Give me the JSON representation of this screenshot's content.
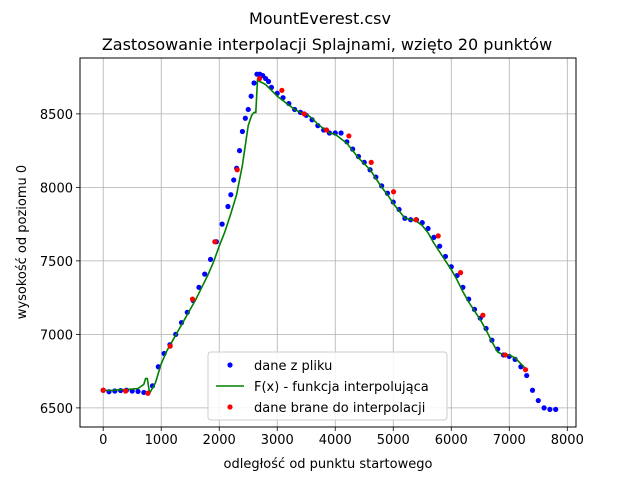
{
  "chart_data": {
    "type": "line",
    "title": "MountEverest.csv",
    "subtitle": "Zastosowanie interpolacji Splajnami, wzięto 20 punktów",
    "xlabel": "odległość od punktu startowego",
    "ylabel": "wysokość od poziomu 0",
    "xlim": [
      -400,
      8150
    ],
    "ylim": [
      6370,
      8880
    ],
    "xticks": [
      0,
      1000,
      2000,
      3000,
      4000,
      5000,
      6000,
      7000,
      8000
    ],
    "yticks": [
      6500,
      7000,
      7500,
      8000,
      8500
    ],
    "grid": true,
    "legend_position": "lower center",
    "series": [
      {
        "name": "dane z pliku",
        "style": "points",
        "color": "#0000ff",
        "x": [
          0,
          100,
          200,
          300,
          400,
          500,
          600,
          700,
          770,
          850,
          950,
          1050,
          1150,
          1250,
          1350,
          1450,
          1550,
          1650,
          1750,
          1850,
          1950,
          2050,
          2150,
          2200,
          2250,
          2300,
          2350,
          2400,
          2450,
          2500,
          2550,
          2600,
          2650,
          2700,
          2750,
          2800,
          2850,
          2900,
          3000,
          3100,
          3200,
          3300,
          3400,
          3500,
          3600,
          3700,
          3800,
          3900,
          4000,
          4100,
          4200,
          4300,
          4400,
          4500,
          4600,
          4700,
          4800,
          4900,
          5000,
          5100,
          5200,
          5300,
          5400,
          5500,
          5600,
          5700,
          5800,
          5900,
          6000,
          6100,
          6200,
          6300,
          6400,
          6500,
          6600,
          6700,
          6800,
          6900,
          7000,
          7100,
          7200,
          7300,
          7400,
          7500,
          7600,
          7700,
          7800
        ],
        "y": [
          6620,
          6610,
          6615,
          6618,
          6620,
          6615,
          6612,
          6605,
          6600,
          6650,
          6780,
          6870,
          6930,
          7000,
          7080,
          7150,
          7230,
          7320,
          7410,
          7510,
          7630,
          7750,
          7870,
          7950,
          8050,
          8130,
          8250,
          8380,
          8470,
          8530,
          8620,
          8710,
          8770,
          8770,
          8760,
          8740,
          8720,
          8680,
          8640,
          8610,
          8570,
          8530,
          8510,
          8490,
          8460,
          8420,
          8390,
          8370,
          8370,
          8370,
          8310,
          8260,
          8210,
          8170,
          8120,
          8070,
          8010,
          7960,
          7900,
          7850,
          7790,
          7780,
          7780,
          7760,
          7720,
          7660,
          7600,
          7530,
          7460,
          7400,
          7320,
          7240,
          7170,
          7110,
          7040,
          6960,
          6900,
          6860,
          6850,
          6830,
          6780,
          6720,
          6620,
          6550,
          6500,
          6490,
          6490
        ]
      },
      {
        "name": "F(x) - funkcja interpolująca",
        "style": "line",
        "color": "#008000",
        "x": [
          0,
          100,
          200,
          300,
          400,
          500,
          600,
          700,
          730,
          760,
          800,
          900,
          1000,
          1100,
          1200,
          1300,
          1400,
          1500,
          1600,
          1700,
          1800,
          1900,
          2000,
          2100,
          2200,
          2300,
          2400,
          2500,
          2560,
          2600,
          2630,
          2660,
          2700,
          2800,
          2900,
          3000,
          3100,
          3200,
          3300,
          3400,
          3500,
          3600,
          3700,
          3800,
          3900,
          4000,
          4100,
          4200,
          4300,
          4400,
          4500,
          4600,
          4700,
          4800,
          4900,
          5000,
          5100,
          5200,
          5300,
          5400,
          5500,
          5600,
          5700,
          5800,
          5900,
          6000,
          6100,
          6200,
          6300,
          6400,
          6500,
          6600,
          6700,
          6800,
          6900,
          7000,
          7100,
          7200,
          7300
        ],
        "y": [
          6620,
          6618,
          6620,
          6624,
          6626,
          6628,
          6632,
          6660,
          6700,
          6700,
          6600,
          6670,
          6800,
          6890,
          6960,
          7030,
          7100,
          7170,
          7240,
          7320,
          7400,
          7490,
          7600,
          7700,
          7820,
          7950,
          8150,
          8420,
          8490,
          8510,
          8510,
          8730,
          8720,
          8700,
          8660,
          8620,
          8590,
          8560,
          8530,
          8510,
          8500,
          8470,
          8430,
          8400,
          8370,
          8360,
          8330,
          8300,
          8250,
          8200,
          8160,
          8120,
          8060,
          8000,
          7950,
          7890,
          7840,
          7790,
          7780,
          7770,
          7740,
          7690,
          7620,
          7560,
          7500,
          7440,
          7370,
          7290,
          7220,
          7160,
          7100,
          7030,
          6950,
          6880,
          6860,
          6860,
          6840,
          6800,
          6760
        ]
      },
      {
        "name": "dane brane do interpolacji",
        "style": "points",
        "color": "#ff0000",
        "x": [
          0,
          385,
          770,
          1155,
          1540,
          1925,
          2310,
          2695,
          3080,
          3465,
          3850,
          4235,
          4620,
          5005,
          5390,
          5775,
          6160,
          6545,
          6930,
          7280
        ],
        "y": [
          6620,
          6615,
          6600,
          6920,
          7240,
          7630,
          8120,
          8740,
          8660,
          8500,
          8390,
          8350,
          8170,
          7970,
          7780,
          7670,
          7420,
          7130,
          6860,
          6760
        ]
      }
    ]
  }
}
